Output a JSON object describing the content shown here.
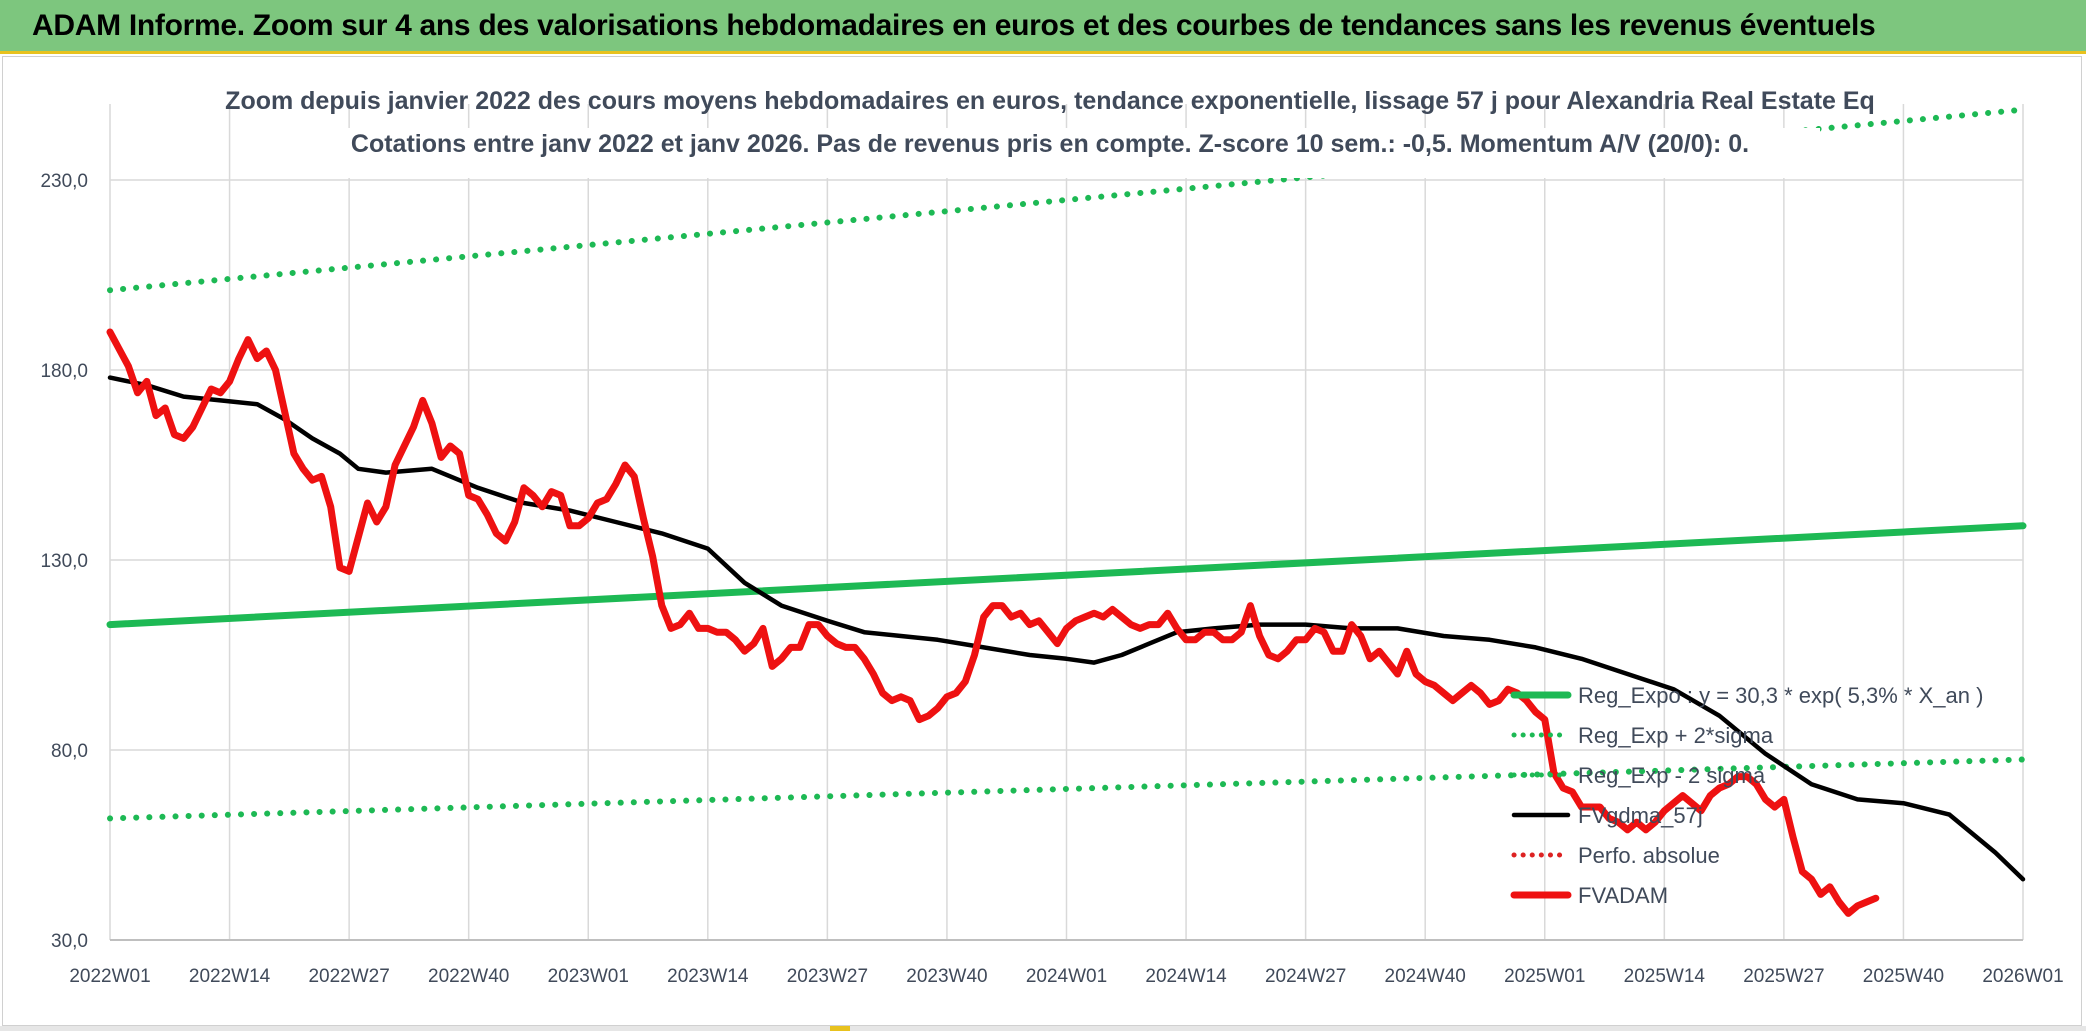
{
  "banner": {
    "title": "ADAM Informe. Zoom sur 4 ans des valorisations hebdomadaires en euros et des courbes de tendances sans les revenus éventuels"
  },
  "colors": {
    "banner_bg": "#7dc67e",
    "trend_green": "#1db954",
    "fvadam_red": "#ee1111",
    "fvgdma_black": "#000000",
    "perfo_red": "#dd2222",
    "text": "#404a5a",
    "grid": "#d9d9d9"
  },
  "chart_data": {
    "type": "line",
    "title": "Zoom depuis janvier 2022 des cours moyens hebdomadaires en euros, tendance exponentielle, lissage 57 j pour Alexandria Real Estate Eq",
    "subtitle": "Cotations entre janv 2022 et janv 2026. Pas de revenus pris en compte. Z-score 10 sem.: -0,5. Momentum A/V (20/0): 0.",
    "x_tick_labels": [
      "2022W01",
      "2022W14",
      "2022W27",
      "2022W40",
      "2023W01",
      "2023W14",
      "2023W27",
      "2023W40",
      "2024W01",
      "2024W14",
      "2024W27",
      "2024W40",
      "2025W01",
      "2025W14",
      "2025W27",
      "2025W40",
      "2026W01"
    ],
    "x_range_weeks": [
      0,
      208
    ],
    "y_ticks": [
      30,
      80,
      130,
      180,
      230
    ],
    "y_tick_labels": [
      "30,0",
      "80,0",
      "130,0",
      "180,0",
      "230,0"
    ],
    "ylim": [
      30,
      250
    ],
    "grid": true,
    "legend_position": "bottom-right",
    "series": [
      {
        "name": "Reg_Expo : y = 30,3 * exp( 5,3% *  X_an )",
        "style": "solid-thick",
        "color": "#1db954",
        "points": [
          [
            0,
            113
          ],
          [
            208,
            139
          ]
        ]
      },
      {
        "name": "Reg_Exp + 2*sigma",
        "style": "dotted",
        "color": "#1db954",
        "points": [
          [
            0,
            201
          ],
          [
            208,
            248.5
          ]
        ]
      },
      {
        "name": "Reg_Exp - 2 sigma",
        "style": "dotted",
        "color": "#1db954",
        "points": [
          [
            0,
            62
          ],
          [
            208,
            77.5
          ]
        ]
      },
      {
        "name": "FVgdma_57j",
        "style": "solid",
        "color": "#000000",
        "points": [
          [
            0,
            178
          ],
          [
            4,
            176
          ],
          [
            8,
            173
          ],
          [
            12,
            172
          ],
          [
            16,
            171
          ],
          [
            19,
            167
          ],
          [
            22,
            162
          ],
          [
            25,
            158
          ],
          [
            27,
            154
          ],
          [
            30,
            153
          ],
          [
            35,
            154
          ],
          [
            40,
            149
          ],
          [
            45,
            145
          ],
          [
            50,
            143
          ],
          [
            55,
            140
          ],
          [
            60,
            137
          ],
          [
            65,
            133
          ],
          [
            69,
            124
          ],
          [
            73,
            118
          ],
          [
            78,
            114
          ],
          [
            82,
            111
          ],
          [
            86,
            110
          ],
          [
            90,
            109
          ],
          [
            95,
            107
          ],
          [
            100,
            105
          ],
          [
            104,
            104
          ],
          [
            107,
            103
          ],
          [
            110,
            105
          ],
          [
            113,
            108
          ],
          [
            116,
            111
          ],
          [
            120,
            112
          ],
          [
            125,
            113
          ],
          [
            130,
            113
          ],
          [
            135,
            112
          ],
          [
            140,
            112
          ],
          [
            145,
            110
          ],
          [
            150,
            109
          ],
          [
            155,
            107
          ],
          [
            160,
            104
          ],
          [
            165,
            100
          ],
          [
            170,
            96
          ],
          [
            175,
            89
          ],
          [
            180,
            79
          ],
          [
            185,
            71
          ],
          [
            190,
            67
          ],
          [
            195,
            66
          ],
          [
            200,
            63
          ],
          [
            205,
            53
          ],
          [
            208,
            46
          ]
        ]
      },
      {
        "name": "Perfo. absolue",
        "style": "dotted",
        "color": "#dd2222",
        "points": []
      },
      {
        "name": "FVADAM",
        "style": "solid-thick",
        "color": "#ee1111",
        "points": [
          [
            0,
            190
          ],
          [
            2,
            181
          ],
          [
            3,
            174
          ],
          [
            4,
            177
          ],
          [
            5,
            168
          ],
          [
            6,
            170
          ],
          [
            7,
            163
          ],
          [
            8,
            162
          ],
          [
            9,
            165
          ],
          [
            10,
            170
          ],
          [
            11,
            175
          ],
          [
            12,
            174
          ],
          [
            13,
            177
          ],
          [
            14,
            183
          ],
          [
            15,
            188
          ],
          [
            16,
            183
          ],
          [
            17,
            185
          ],
          [
            18,
            180
          ],
          [
            19,
            169
          ],
          [
            20,
            158
          ],
          [
            21,
            154
          ],
          [
            22,
            151
          ],
          [
            23,
            152
          ],
          [
            24,
            144
          ],
          [
            25,
            128
          ],
          [
            26,
            127
          ],
          [
            27,
            136
          ],
          [
            28,
            145
          ],
          [
            29,
            140
          ],
          [
            30,
            144
          ],
          [
            31,
            155
          ],
          [
            32,
            160
          ],
          [
            33,
            165
          ],
          [
            34,
            172
          ],
          [
            35,
            166
          ],
          [
            36,
            157
          ],
          [
            37,
            160
          ],
          [
            38,
            158
          ],
          [
            39,
            147
          ],
          [
            40,
            146
          ],
          [
            41,
            142
          ],
          [
            42,
            137
          ],
          [
            43,
            135
          ],
          [
            44,
            140
          ],
          [
            45,
            149
          ],
          [
            46,
            147
          ],
          [
            47,
            144
          ],
          [
            48,
            148
          ],
          [
            49,
            147
          ],
          [
            50,
            139
          ],
          [
            51,
            139
          ],
          [
            52,
            141
          ],
          [
            53,
            145
          ],
          [
            54,
            146
          ],
          [
            55,
            150
          ],
          [
            56,
            155
          ],
          [
            57,
            152
          ],
          [
            58,
            141
          ],
          [
            59,
            131
          ],
          [
            60,
            118
          ],
          [
            61,
            112
          ],
          [
            62,
            113
          ],
          [
            63,
            116
          ],
          [
            64,
            112
          ],
          [
            65,
            112
          ],
          [
            66,
            111
          ],
          [
            67,
            111
          ],
          [
            68,
            109
          ],
          [
            69,
            106
          ],
          [
            70,
            108
          ],
          [
            71,
            112
          ],
          [
            72,
            102
          ],
          [
            73,
            104
          ],
          [
            74,
            107
          ],
          [
            75,
            107
          ],
          [
            76,
            113
          ],
          [
            77,
            113
          ],
          [
            78,
            110
          ],
          [
            79,
            108
          ],
          [
            80,
            107
          ],
          [
            81,
            107
          ],
          [
            82,
            104
          ],
          [
            83,
            100
          ],
          [
            84,
            95
          ],
          [
            85,
            93
          ],
          [
            86,
            94
          ],
          [
            87,
            93
          ],
          [
            88,
            88
          ],
          [
            89,
            89
          ],
          [
            90,
            91
          ],
          [
            91,
            94
          ],
          [
            92,
            95
          ],
          [
            93,
            98
          ],
          [
            94,
            105
          ],
          [
            95,
            115
          ],
          [
            96,
            118
          ],
          [
            97,
            118
          ],
          [
            98,
            115
          ],
          [
            99,
            116
          ],
          [
            100,
            113
          ],
          [
            101,
            114
          ],
          [
            102,
            111
          ],
          [
            103,
            108
          ],
          [
            104,
            112
          ],
          [
            105,
            114
          ],
          [
            106,
            115
          ],
          [
            107,
            116
          ],
          [
            108,
            115
          ],
          [
            109,
            117
          ],
          [
            110,
            115
          ],
          [
            111,
            113
          ],
          [
            112,
            112
          ],
          [
            113,
            113
          ],
          [
            114,
            113
          ],
          [
            115,
            116
          ],
          [
            116,
            112
          ],
          [
            117,
            109
          ],
          [
            118,
            109
          ],
          [
            119,
            111
          ],
          [
            120,
            111
          ],
          [
            121,
            109
          ],
          [
            122,
            109
          ],
          [
            123,
            111
          ],
          [
            124,
            118
          ],
          [
            125,
            110
          ],
          [
            126,
            105
          ],
          [
            127,
            104
          ],
          [
            128,
            106
          ],
          [
            129,
            109
          ],
          [
            130,
            109
          ],
          [
            131,
            112
          ],
          [
            132,
            111
          ],
          [
            133,
            106
          ],
          [
            134,
            106
          ],
          [
            135,
            113
          ],
          [
            136,
            110
          ],
          [
            137,
            104
          ],
          [
            138,
            106
          ],
          [
            139,
            103
          ],
          [
            140,
            100
          ],
          [
            141,
            106
          ],
          [
            142,
            100
          ],
          [
            143,
            98
          ],
          [
            144,
            97
          ],
          [
            145,
            95
          ],
          [
            146,
            93
          ],
          [
            147,
            95
          ],
          [
            148,
            97
          ],
          [
            149,
            95
          ],
          [
            150,
            92
          ],
          [
            151,
            93
          ],
          [
            152,
            96
          ],
          [
            153,
            95
          ],
          [
            154,
            93
          ],
          [
            155,
            90
          ],
          [
            156,
            88
          ],
          [
            157,
            74
          ],
          [
            158,
            70
          ],
          [
            159,
            69
          ],
          [
            160,
            65
          ],
          [
            161,
            65
          ],
          [
            162,
            65
          ],
          [
            163,
            62
          ],
          [
            164,
            61
          ],
          [
            165,
            59
          ],
          [
            166,
            61
          ],
          [
            167,
            59
          ],
          [
            168,
            61
          ],
          [
            169,
            64
          ],
          [
            170,
            66
          ],
          [
            171,
            68
          ],
          [
            172,
            66
          ],
          [
            173,
            64
          ],
          [
            174,
            68
          ],
          [
            175,
            70
          ],
          [
            176,
            71
          ],
          [
            177,
            73
          ],
          [
            178,
            73
          ],
          [
            179,
            71
          ],
          [
            180,
            67
          ],
          [
            181,
            65
          ],
          [
            182,
            67
          ],
          [
            183,
            57
          ],
          [
            184,
            48
          ],
          [
            185,
            46
          ],
          [
            186,
            42
          ],
          [
            187,
            44
          ],
          [
            188,
            40
          ],
          [
            189,
            37
          ],
          [
            190,
            39
          ],
          [
            191,
            40
          ],
          [
            192,
            41
          ]
        ]
      }
    ]
  }
}
